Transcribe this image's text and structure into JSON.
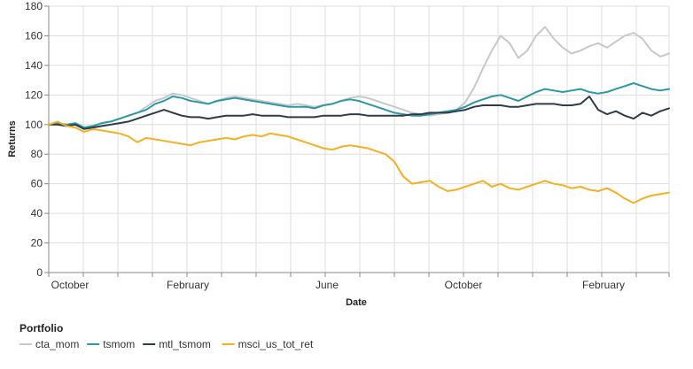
{
  "chart_data": {
    "type": "line",
    "xlabel": "Date",
    "ylabel": "Returns",
    "ylim": [
      0,
      180
    ],
    "yticks": [
      0,
      20,
      40,
      60,
      80,
      100,
      120,
      140,
      160,
      180
    ],
    "x_tick_labels": [
      "October",
      "February",
      "June",
      "October",
      "February"
    ],
    "grid": true,
    "legend": {
      "title": "Portfolio",
      "placement": "bottom-left"
    },
    "series": [
      {
        "name": "cta_mom",
        "color": "#c6c8ca",
        "values": [
          100,
          100,
          99,
          100,
          98,
          99,
          101,
          102,
          104,
          106,
          108,
          112,
          116,
          118,
          121,
          120,
          118,
          116,
          114,
          116,
          118,
          119,
          118,
          117,
          116,
          115,
          114,
          113,
          114,
          113,
          112,
          113,
          114,
          116,
          118,
          119,
          118,
          116,
          114,
          112,
          110,
          108,
          107,
          106,
          107,
          108,
          110,
          115,
          125,
          138,
          150,
          160,
          155,
          145,
          150,
          160,
          166,
          158,
          152,
          148,
          150,
          153,
          155,
          152,
          156,
          160,
          162,
          158,
          150,
          146,
          148
        ]
      },
      {
        "name": "tsmom",
        "color": "#2e97a3",
        "values": [
          100,
          101,
          100,
          101,
          98,
          99,
          101,
          102,
          104,
          106,
          108,
          110,
          114,
          116,
          119,
          118,
          116,
          115,
          114,
          116,
          117,
          118,
          117,
          116,
          115,
          114,
          113,
          112,
          112,
          112,
          111,
          113,
          114,
          116,
          117,
          116,
          114,
          112,
          110,
          108,
          107,
          106,
          106,
          107,
          108,
          109,
          110,
          112,
          115,
          117,
          119,
          120,
          118,
          116,
          119,
          122,
          124,
          123,
          122,
          123,
          124,
          122,
          121,
          122,
          124,
          126,
          128,
          126,
          124,
          123,
          124
        ]
      },
      {
        "name": "mtl_tsmom",
        "color": "#2f3b47",
        "values": [
          100,
          100,
          99,
          100,
          97,
          98,
          99,
          100,
          101,
          102,
          104,
          106,
          108,
          110,
          108,
          106,
          105,
          105,
          104,
          105,
          106,
          106,
          106,
          107,
          106,
          106,
          106,
          105,
          105,
          105,
          105,
          106,
          106,
          106,
          107,
          107,
          106,
          106,
          106,
          106,
          106,
          107,
          107,
          108,
          108,
          108,
          109,
          110,
          112,
          113,
          113,
          113,
          112,
          112,
          113,
          114,
          114,
          114,
          113,
          113,
          114,
          119,
          110,
          107,
          109,
          106,
          104,
          108,
          106,
          109,
          111
        ]
      },
      {
        "name": "msci_us_tot_ret",
        "color": "#f2b024",
        "values": [
          100,
          102,
          99,
          98,
          95,
          97,
          96,
          95,
          94,
          92,
          88,
          91,
          90,
          89,
          88,
          87,
          86,
          88,
          89,
          90,
          91,
          90,
          92,
          93,
          92,
          94,
          93,
          92,
          90,
          88,
          86,
          84,
          83,
          85,
          86,
          85,
          84,
          82,
          80,
          75,
          65,
          60,
          61,
          62,
          58,
          55,
          56,
          58,
          60,
          62,
          58,
          60,
          57,
          56,
          58,
          60,
          62,
          60,
          59,
          57,
          58,
          56,
          55,
          57,
          54,
          50,
          47,
          50,
          52,
          53,
          54
        ]
      }
    ]
  }
}
